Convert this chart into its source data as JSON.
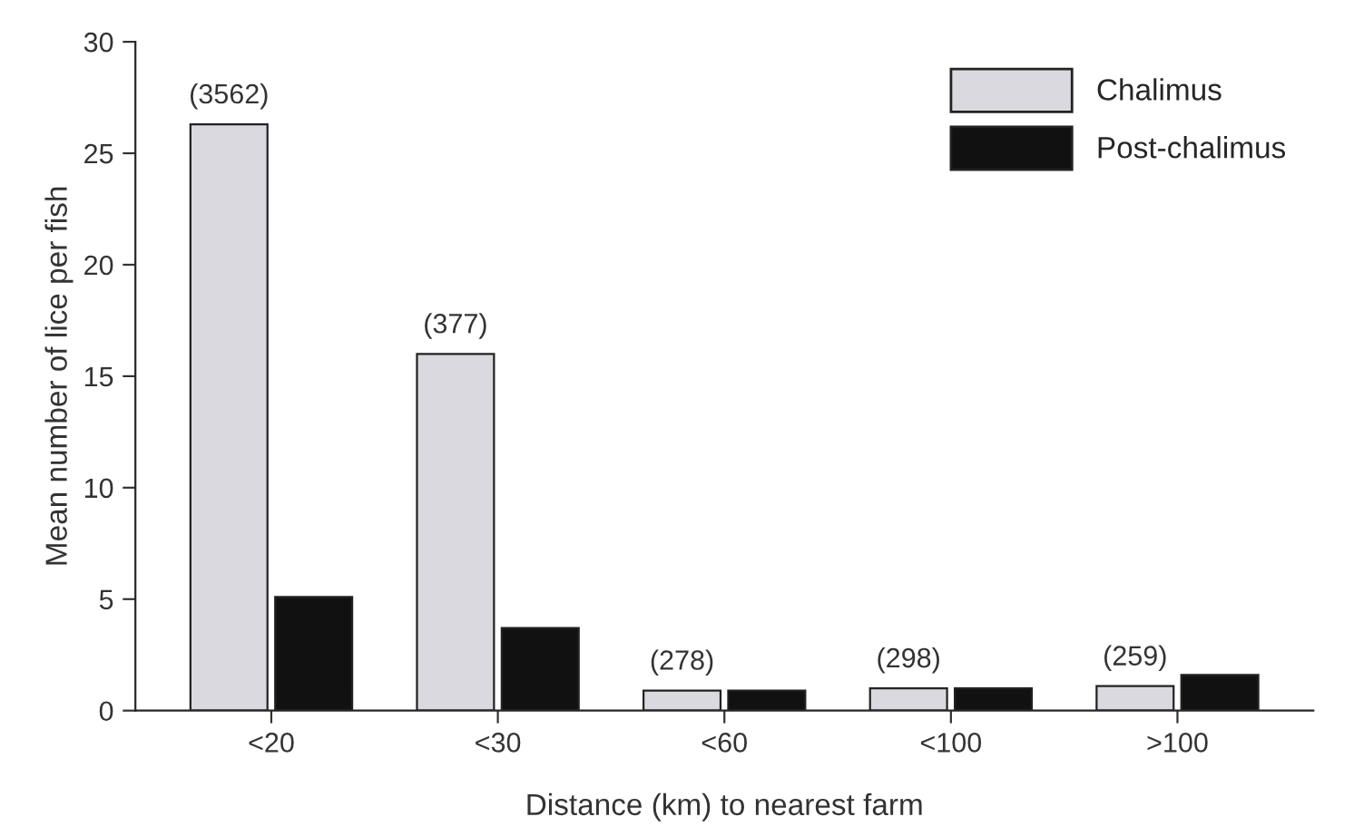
{
  "chart_data": {
    "type": "bar",
    "xlabel": "Distance (km) to nearest farm",
    "ylabel": "Mean number of lice per fish",
    "categories": [
      "<20",
      "<30",
      "<60",
      "<100",
      ">100"
    ],
    "series": [
      {
        "name": "Chalimus",
        "color": "#d9d9df",
        "values": [
          26.3,
          16.0,
          0.9,
          1.0,
          1.1
        ]
      },
      {
        "name": "Post-chalimus",
        "color": "#111111",
        "values": [
          5.1,
          3.7,
          0.9,
          1.0,
          1.6
        ]
      }
    ],
    "annotations": [
      {
        "text": "(3562)",
        "x": "<20",
        "y": 26.3
      },
      {
        "text": "(377)",
        "x": "<30",
        "y": 16.0
      },
      {
        "text": "(278)",
        "x": "<60",
        "y": 0.9
      },
      {
        "text": "(298)",
        "x": "<100",
        "y": 1.0
      },
      {
        "text": "(259)",
        "x": ">100",
        "y": 1.1
      }
    ],
    "ylim": [
      0,
      30
    ],
    "yticks": [
      0,
      5,
      10,
      15,
      20,
      25,
      30
    ],
    "grid": false,
    "legend": "top right"
  }
}
